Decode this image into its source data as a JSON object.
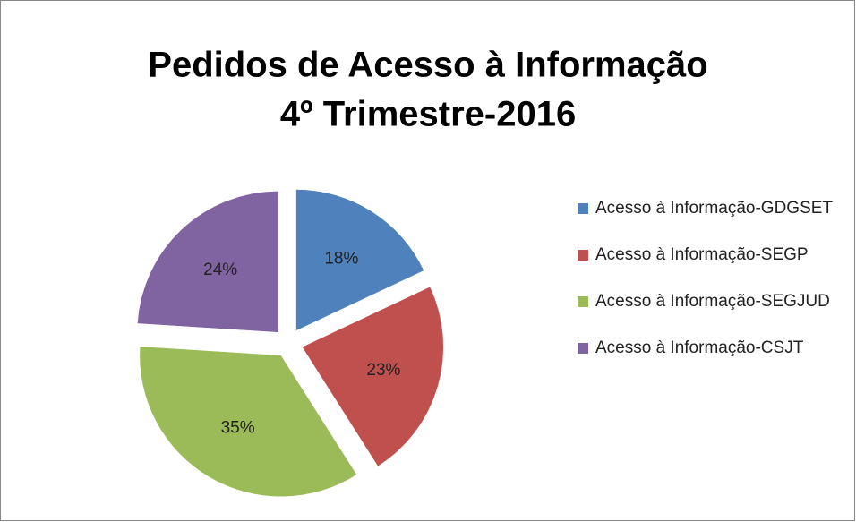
{
  "chart_data": {
    "type": "pie",
    "title": [
      "Pedidos de Acesso à Informação",
      "4º Trimestre-2016"
    ],
    "categories": [
      "Acesso à Informação-GDGSET",
      "Acesso à Informação-SEGP",
      "Acesso à Informação-SEGJUD",
      "Acesso à Informação-CSJT"
    ],
    "values": [
      18,
      23,
      35,
      24
    ],
    "value_labels": [
      "18%",
      "23%",
      "35%",
      "24%"
    ],
    "colors": [
      "#4f81bd",
      "#c0504d",
      "#9bbb59",
      "#8064a2"
    ],
    "legend": "right"
  }
}
